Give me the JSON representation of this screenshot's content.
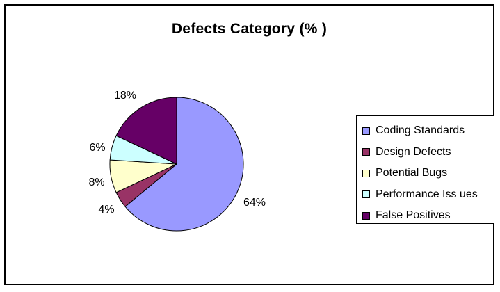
{
  "chart_data": {
    "type": "pie",
    "title": "Defects Category (% )",
    "categories": [
      "Coding Standards",
      "Design Defects",
      "Potential Bugs",
      "Performance Iss ues",
      "False Positives"
    ],
    "values": [
      64,
      4,
      8,
      6,
      18
    ],
    "labels": [
      "64%",
      "4%",
      "8%",
      "6%",
      "18%"
    ],
    "colors": [
      "#9999ff",
      "#993366",
      "#ffffcc",
      "#ccffff",
      "#660066"
    ],
    "legend_position": "right",
    "start_angle": "12 o'clock, clockwise"
  }
}
